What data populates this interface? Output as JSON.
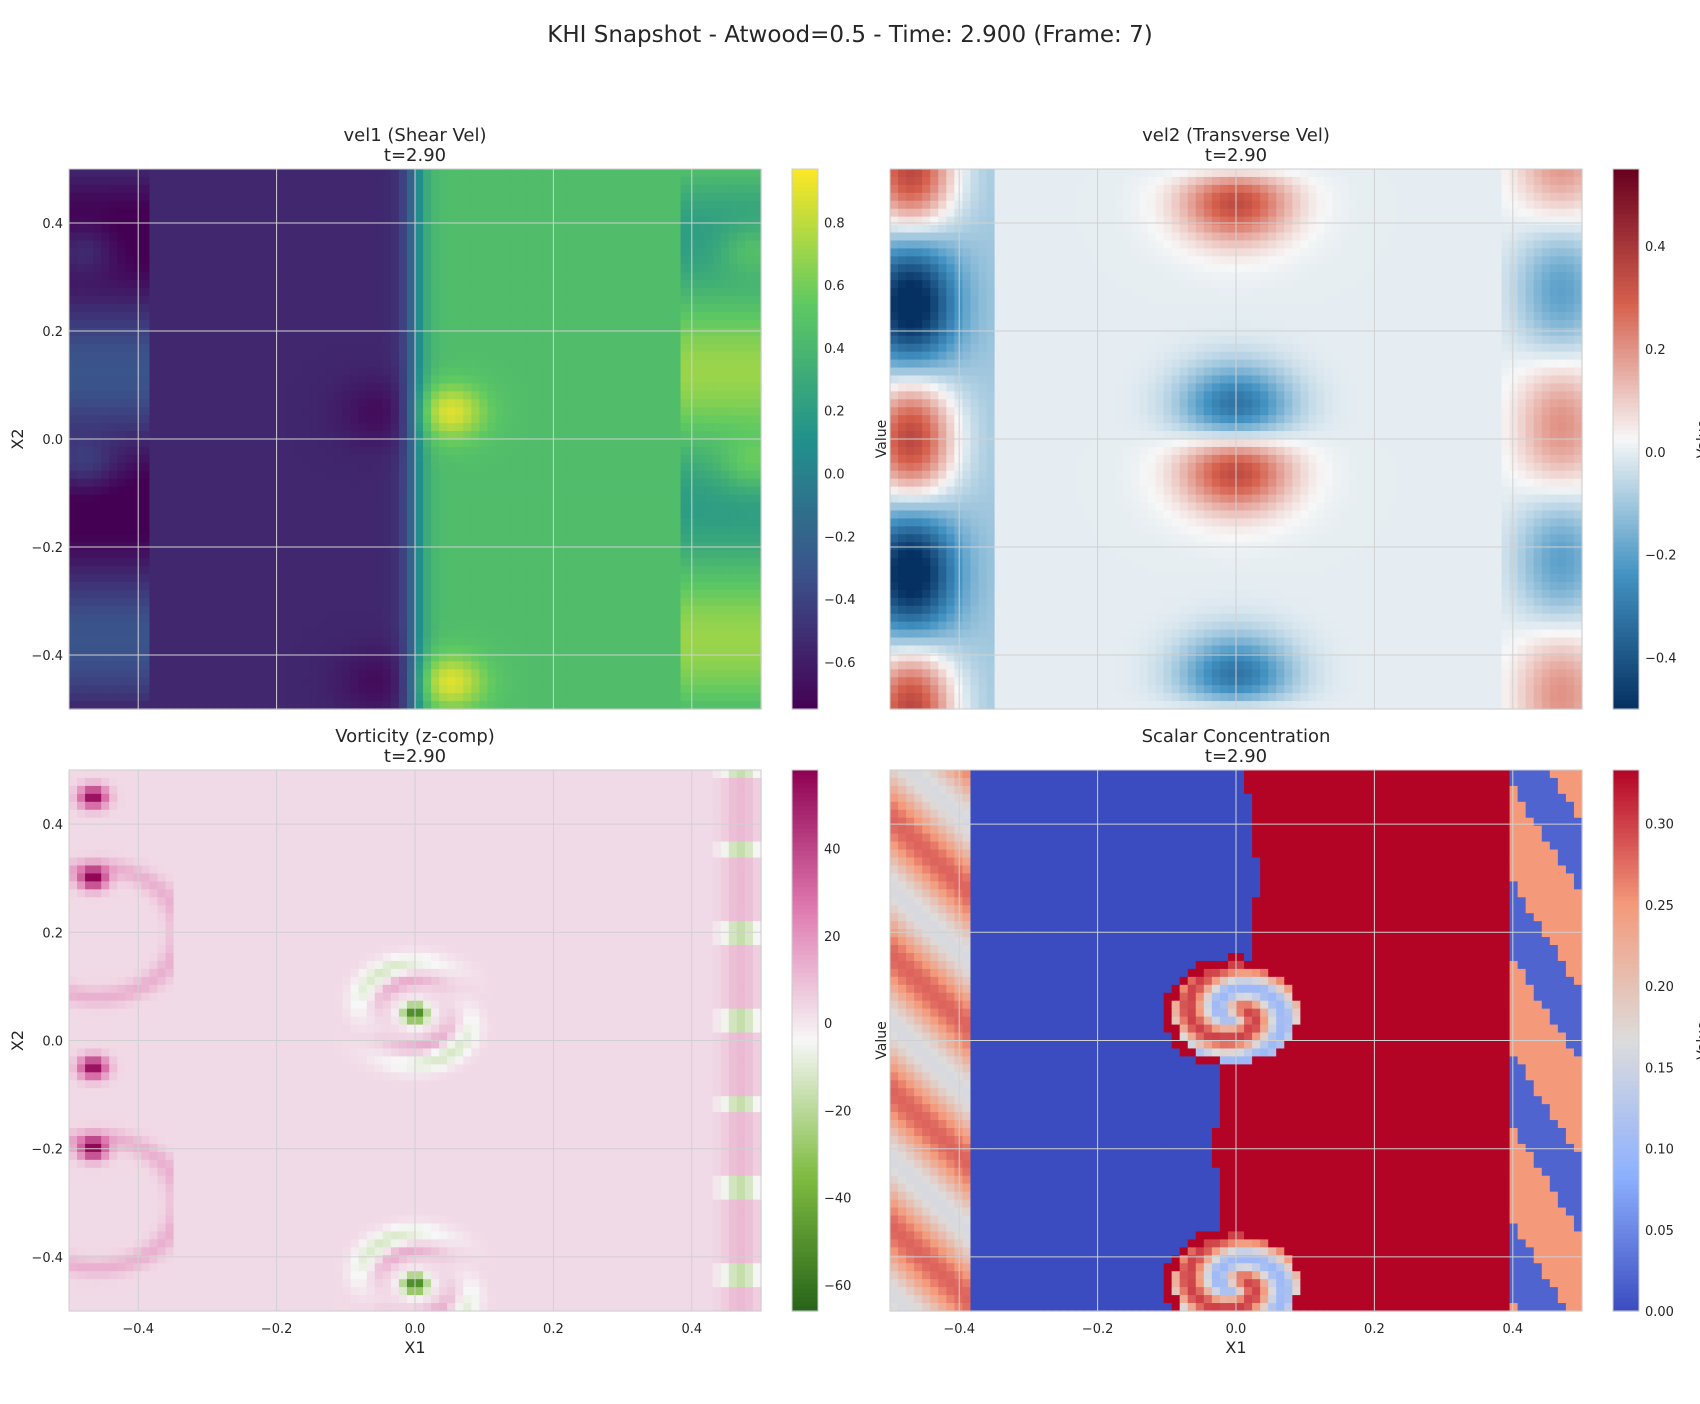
{
  "figure": {
    "suptitle": "KHI Snapshot - Atwood=0.5 - Time: 2.900 (Frame: 7)"
  },
  "chart_data": [
    {
      "type": "heatmap",
      "title": "vel1 (Shear Vel)",
      "subtitle": "t=2.90",
      "xlabel": "",
      "ylabel": "X2",
      "xlim": [
        -0.5,
        0.5
      ],
      "ylim": [
        -0.5,
        0.5
      ],
      "xticks": [
        -0.4,
        -0.2,
        0.0,
        0.2,
        0.4
      ],
      "yticks": [
        -0.4,
        -0.2,
        0.0,
        0.2,
        0.4
      ],
      "show_xticklabels": false,
      "show_yticklabels": true,
      "xtick_labels": [],
      "ytick_labels": [
        "−0.4",
        "−0.2",
        "0.0",
        "0.2",
        "0.4"
      ],
      "grid": true,
      "colormap": "viridis",
      "colormap_stops": [
        "#440154",
        "#3b528b",
        "#21918c",
        "#5ec962",
        "#fde725"
      ],
      "colorbar": {
        "label": "Value",
        "range": [
          -0.75,
          0.97
        ],
        "ticks": [
          -0.6,
          -0.4,
          -0.2,
          0.0,
          0.2,
          0.4,
          0.6,
          0.8
        ],
        "tick_labels": [
          "−0.6",
          "−0.4",
          "−0.2",
          "0.0",
          "0.2",
          "0.4",
          "0.6",
          "0.8"
        ]
      }
    },
    {
      "type": "heatmap",
      "title": "vel2 (Transverse Vel)",
      "subtitle": "t=2.90",
      "xlabel": "",
      "ylabel": "",
      "xlim": [
        -0.5,
        0.5
      ],
      "ylim": [
        -0.5,
        0.5
      ],
      "xticks": [
        -0.4,
        -0.2,
        0.0,
        0.2,
        0.4
      ],
      "yticks": [
        -0.4,
        -0.2,
        0.0,
        0.2,
        0.4
      ],
      "show_xticklabels": false,
      "show_yticklabels": false,
      "xtick_labels": [],
      "ytick_labels": [],
      "grid": true,
      "colormap": "RdBu_r",
      "colormap_stops": [
        "#053061",
        "#4393c3",
        "#f7f7f7",
        "#d6604d",
        "#67001f"
      ],
      "colorbar": {
        "label": "Value",
        "range": [
          -0.5,
          0.55
        ],
        "ticks": [
          -0.4,
          -0.2,
          0.0,
          0.2,
          0.4
        ],
        "tick_labels": [
          "−0.4",
          "−0.2",
          "0.0",
          "0.2",
          "0.4"
        ]
      }
    },
    {
      "type": "heatmap",
      "title": "Vorticity (z-comp)",
      "subtitle": "t=2.90",
      "xlabel": "X1",
      "ylabel": "X2",
      "xlim": [
        -0.5,
        0.5
      ],
      "ylim": [
        -0.5,
        0.5
      ],
      "xticks": [
        -0.4,
        -0.2,
        0.0,
        0.2,
        0.4
      ],
      "yticks": [
        -0.4,
        -0.2,
        0.0,
        0.2,
        0.4
      ],
      "show_xticklabels": true,
      "show_yticklabels": true,
      "xtick_labels": [
        "−0.4",
        "−0.2",
        "0.0",
        "0.2",
        "0.4"
      ],
      "ytick_labels": [
        "−0.4",
        "−0.2",
        "0.0",
        "0.2",
        "0.4"
      ],
      "grid": true,
      "colormap": "PiYG_r",
      "colormap_stops": [
        "#276419",
        "#7fbc41",
        "#f7f7f7",
        "#de77ae",
        "#8e0152"
      ],
      "colorbar": {
        "label": "Value",
        "range": [
          -66,
          58
        ],
        "ticks": [
          -60,
          -40,
          -20,
          0,
          20,
          40
        ],
        "tick_labels": [
          "−60",
          "−40",
          "−20",
          "0",
          "20",
          "40"
        ]
      }
    },
    {
      "type": "heatmap",
      "title": "Scalar Concentration",
      "subtitle": "t=2.90",
      "xlabel": "X1",
      "ylabel": "",
      "xlim": [
        -0.5,
        0.5
      ],
      "ylim": [
        -0.5,
        0.5
      ],
      "xticks": [
        -0.4,
        -0.2,
        0.0,
        0.2,
        0.4
      ],
      "yticks": [
        -0.4,
        -0.2,
        0.0,
        0.2,
        0.4
      ],
      "show_xticklabels": true,
      "show_yticklabels": false,
      "xtick_labels": [
        "−0.4",
        "−0.2",
        "0.0",
        "0.2",
        "0.4"
      ],
      "ytick_labels": [],
      "grid": true,
      "colormap": "coolwarm",
      "colormap_stops": [
        "#3b4cc0",
        "#8db0fe",
        "#dddcdc",
        "#f49a7b",
        "#b40426"
      ],
      "colorbar": {
        "label": "Value",
        "range": [
          0.0,
          0.333
        ],
        "ticks": [
          0.0,
          0.05,
          0.1,
          0.15,
          0.2,
          0.25,
          0.3
        ],
        "tick_labels": [
          "0.00",
          "0.05",
          "0.10",
          "0.15",
          "0.20",
          "0.25",
          "0.30"
        ]
      }
    }
  ]
}
